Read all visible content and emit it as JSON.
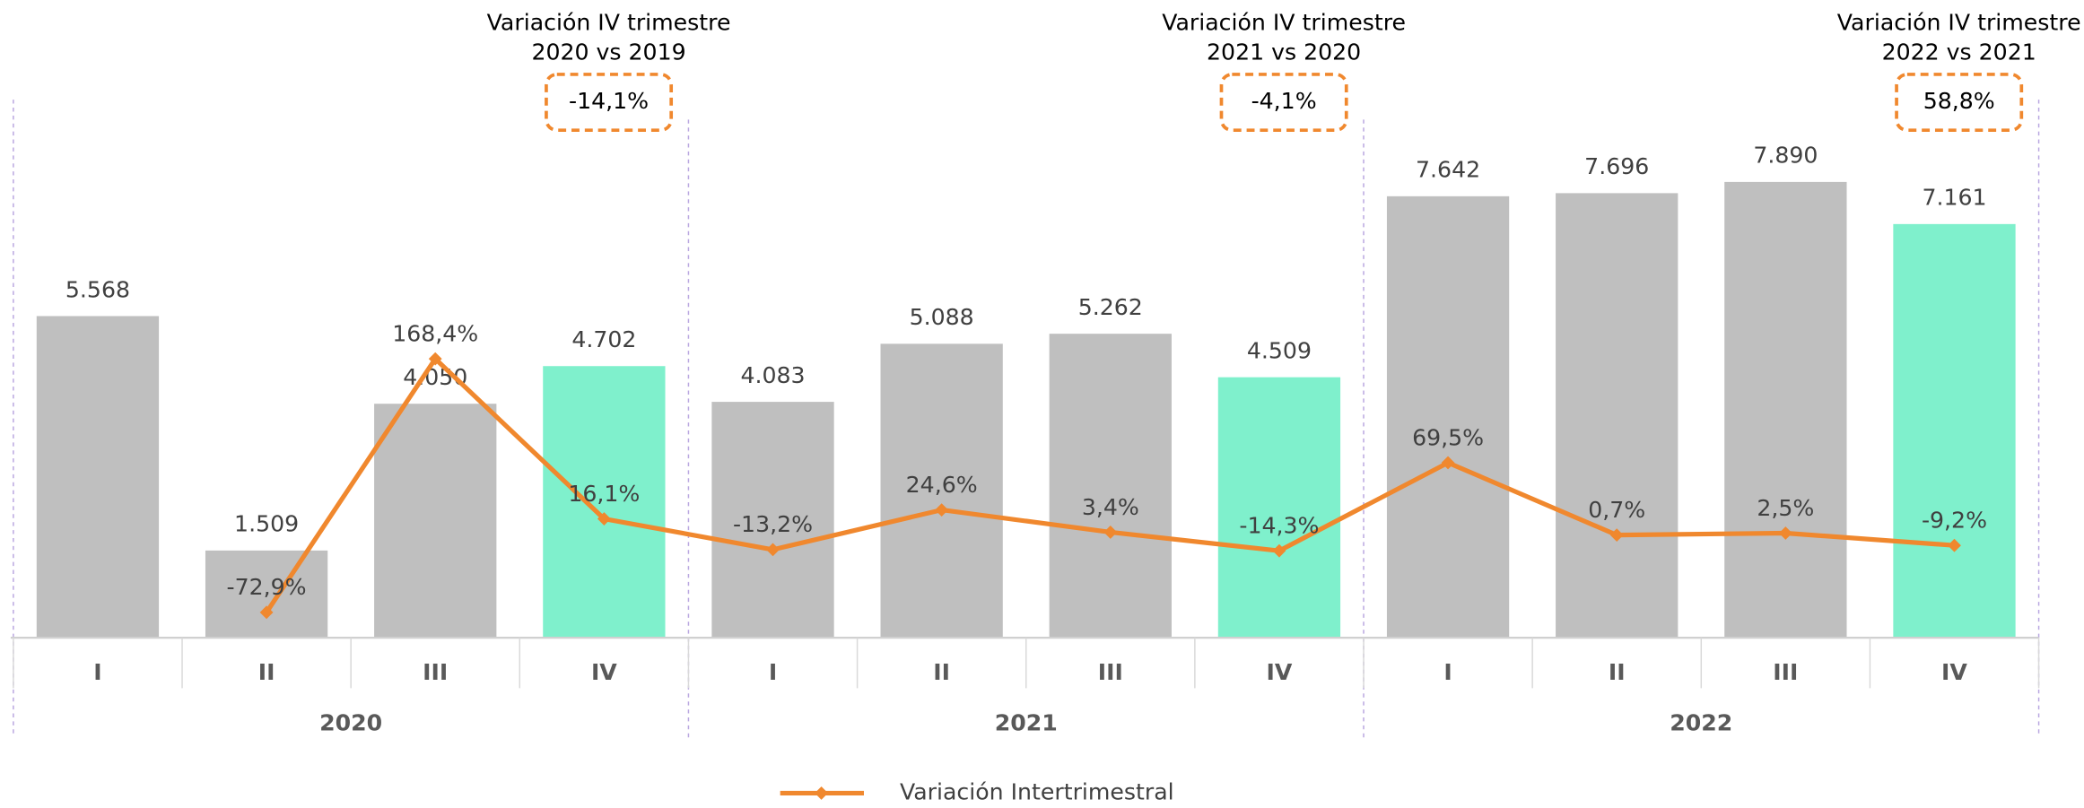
{
  "chart_data": {
    "type": "bar",
    "categories": [
      "I",
      "II",
      "III",
      "IV",
      "I",
      "II",
      "III",
      "IV",
      "I",
      "II",
      "III",
      "IV"
    ],
    "groups": [
      "2020",
      "2021",
      "2022"
    ],
    "ylim": [
      0,
      9660
    ],
    "y2lim": [
      -97,
      434
    ],
    "series": [
      {
        "type": "bar",
        "colors": [
          "#bfbfbf",
          "#bfbfbf",
          "#bfbfbf",
          "#7ff0cc",
          "#bfbfbf",
          "#bfbfbf",
          "#bfbfbf",
          "#7ff0cc",
          "#bfbfbf",
          "#bfbfbf",
          "#bfbfbf",
          "#7ff0cc"
        ],
        "values": [
          5568,
          1509,
          4050,
          4702,
          4083,
          5088,
          5262,
          4509,
          7642,
          7696,
          7890,
          7161
        ],
        "value_labels": [
          "5.568",
          "1.509",
          "4.050",
          "4.702",
          "4.083",
          "5.088",
          "5.262",
          "4.509",
          "7.642",
          "7.696",
          "7.890",
          "7.161"
        ]
      },
      {
        "type": "line",
        "axis": "y2",
        "name": "Variación Intertrimestral",
        "color": "#f0882e",
        "values": [
          null,
          -72.9,
          168.4,
          16.1,
          -13.2,
          24.6,
          3.4,
          -14.3,
          69.5,
          0.7,
          2.5,
          -9.2
        ],
        "value_labels": [
          null,
          "-72,9%",
          "168,4%",
          "16,1%",
          "-13,2%",
          "24,6%",
          "3,4%",
          "-14,3%",
          "69,5%",
          "0,7%",
          "2,5%",
          "-9,2%"
        ]
      }
    ],
    "annotations": [
      {
        "text": "Variación IV trimestre",
        "subtext": "2020 vs 2019",
        "label": "-14,1%"
      },
      {
        "text": "Variación IV trimestre",
        "subtext": "2021 vs 2020",
        "label": "-4,1%"
      },
      {
        "text": "Variación IV trimestre",
        "subtext": "2022 vs 2021",
        "label": "58,8%"
      }
    ]
  }
}
